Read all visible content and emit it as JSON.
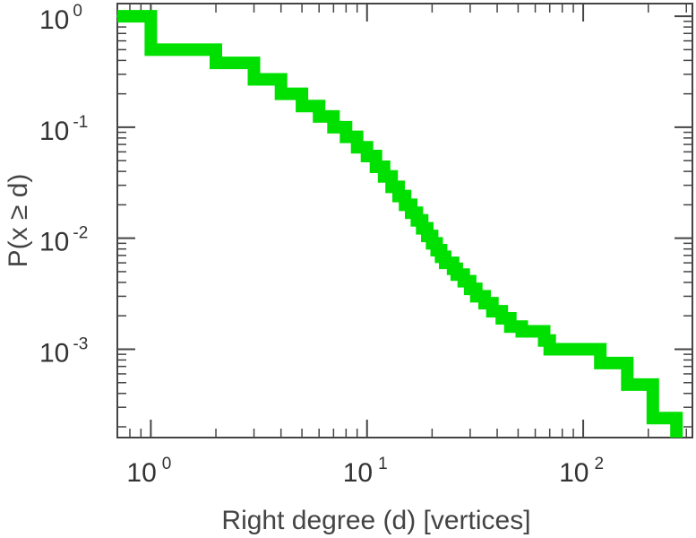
{
  "chart_data": {
    "type": "line",
    "step": true,
    "xscale": "log",
    "yscale": "log",
    "xlabel": "Right degree (d) [vertices]",
    "ylabel": "P(x ≥ d)",
    "xlim": [
      0.7,
      320
    ],
    "ylim": [
      0.00016,
      1.3
    ],
    "grid": false,
    "line_color": "#00e000",
    "x_ticks": [
      {
        "base": "10",
        "exp": "0",
        "value": 1
      },
      {
        "base": "10",
        "exp": "1",
        "value": 10
      },
      {
        "base": "10",
        "exp": "2",
        "value": 100
      }
    ],
    "y_ticks": [
      {
        "base": "10",
        "exp": "0",
        "value": 1
      },
      {
        "base": "10",
        "exp": "-1",
        "value": 0.1
      },
      {
        "base": "10",
        "exp": "-2",
        "value": 0.01
      },
      {
        "base": "10",
        "exp": "-3",
        "value": 0.001
      }
    ],
    "series": [
      {
        "points": [
          [
            0.7,
            1.0
          ],
          [
            1,
            0.5
          ],
          [
            2,
            0.38
          ],
          [
            3,
            0.27
          ],
          [
            4,
            0.2
          ],
          [
            5,
            0.155
          ],
          [
            6,
            0.125
          ],
          [
            7,
            0.1
          ],
          [
            8,
            0.082
          ],
          [
            9,
            0.066
          ],
          [
            10,
            0.055
          ],
          [
            11,
            0.044
          ],
          [
            12,
            0.036
          ],
          [
            13,
            0.029
          ],
          [
            14,
            0.024
          ],
          [
            15,
            0.02
          ],
          [
            16,
            0.017
          ],
          [
            17,
            0.0145
          ],
          [
            18,
            0.0123
          ],
          [
            19,
            0.0105
          ],
          [
            20,
            0.009
          ],
          [
            21,
            0.0078
          ],
          [
            22,
            0.0068
          ],
          [
            23,
            0.006
          ],
          [
            25,
            0.0053
          ],
          [
            26,
            0.0047
          ],
          [
            28,
            0.0041
          ],
          [
            30,
            0.0035
          ],
          [
            32,
            0.003
          ],
          [
            35,
            0.0026
          ],
          [
            38,
            0.0022
          ],
          [
            42,
            0.0019
          ],
          [
            46,
            0.0016
          ],
          [
            52,
            0.00145
          ],
          [
            66,
            0.0012
          ],
          [
            70,
            0.001
          ],
          [
            120,
            0.00075
          ],
          [
            160,
            0.00048
          ],
          [
            210,
            0.00024
          ],
          [
            270,
            0.00024
          ]
        ]
      }
    ]
  }
}
